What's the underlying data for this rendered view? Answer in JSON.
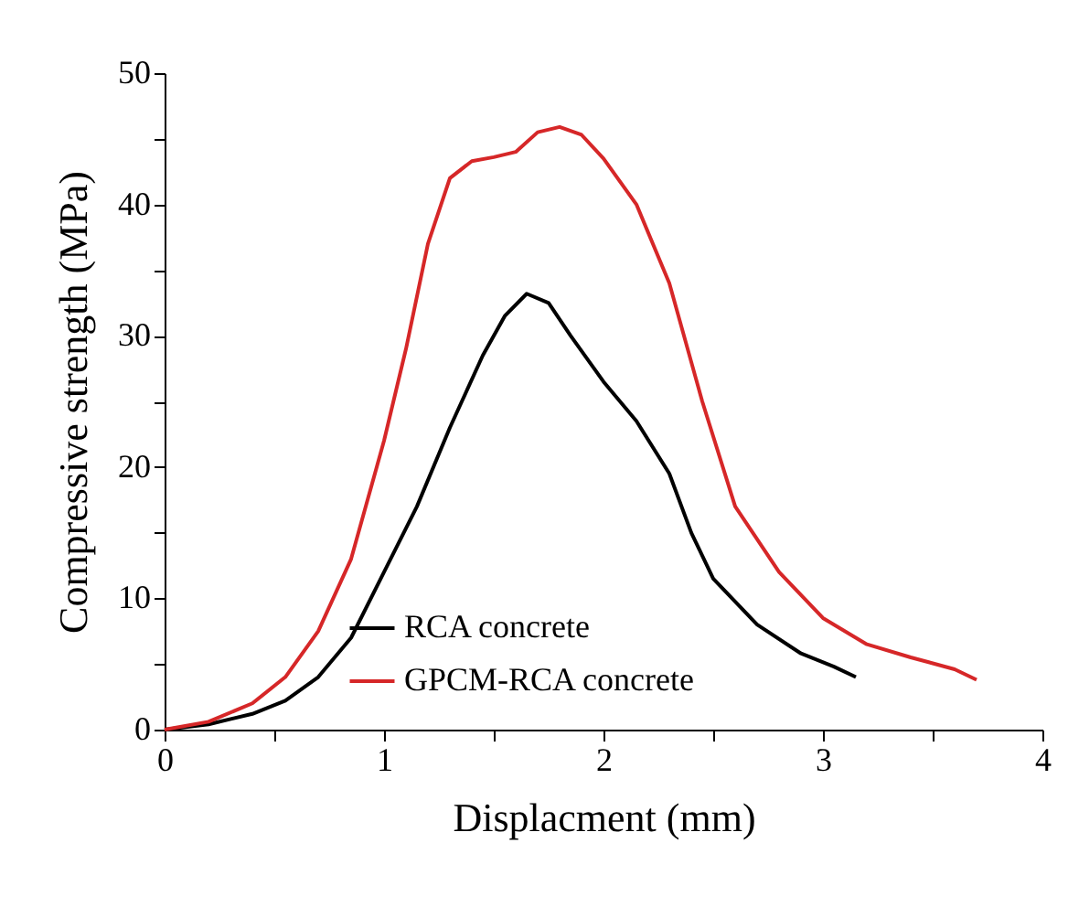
{
  "chart_data": {
    "type": "line",
    "xlabel": "Displacment (mm)",
    "ylabel": "Compressive strength (MPa)",
    "xlim": [
      0,
      4
    ],
    "xticks": [
      0,
      {
        "value": 0.5,
        "label": null
      },
      1,
      {
        "value": 1.5,
        "label": null
      },
      2,
      {
        "value": 2.5,
        "label": null
      },
      3,
      {
        "value": 3.5,
        "label": null
      },
      4
    ],
    "ylim": [
      0,
      50
    ],
    "yticks": [
      0,
      {
        "value": 5,
        "label": null
      },
      10,
      {
        "value": 15,
        "label": null
      },
      20,
      {
        "value": 25,
        "label": null
      },
      30,
      {
        "value": 35,
        "label": null
      },
      40,
      {
        "value": 45,
        "label": null
      },
      50
    ],
    "grid": false,
    "legend": "bottom",
    "marker": "none",
    "line_style": "solid",
    "series": [
      {
        "name": "RCA concrete",
        "color": "#000000",
        "x": [
          0,
          0.2,
          0.4,
          0.55,
          0.7,
          0.85,
          1.0,
          1.15,
          1.3,
          1.45,
          1.55,
          1.65,
          1.75,
          1.85,
          2.0,
          2.15,
          2.3,
          2.4,
          2.5,
          2.7,
          2.9,
          3.05,
          3.15
        ],
        "values": [
          0,
          0.4,
          1.2,
          2.2,
          4,
          7,
          12,
          17,
          23,
          28.5,
          31.5,
          33.2,
          32.5,
          30,
          26.5,
          23.5,
          19.5,
          15,
          11.5,
          8,
          5.8,
          4.8,
          4.0
        ]
      },
      {
        "name": "GPCM-RCA concrete",
        "color": "#d62728",
        "x": [
          0,
          0.2,
          0.4,
          0.55,
          0.7,
          0.85,
          1.0,
          1.1,
          1.2,
          1.3,
          1.4,
          1.5,
          1.6,
          1.7,
          1.8,
          1.9,
          2.0,
          2.15,
          2.3,
          2.45,
          2.6,
          2.8,
          3.0,
          3.2,
          3.4,
          3.6,
          3.7
        ],
        "values": [
          0,
          0.6,
          2,
          4,
          7.5,
          13,
          22,
          29,
          37,
          42,
          43.3,
          43.6,
          44,
          45.5,
          45.9,
          45.3,
          43.5,
          40,
          34,
          25,
          17,
          12,
          8.5,
          6.5,
          5.5,
          4.6,
          3.8
        ]
      }
    ]
  }
}
